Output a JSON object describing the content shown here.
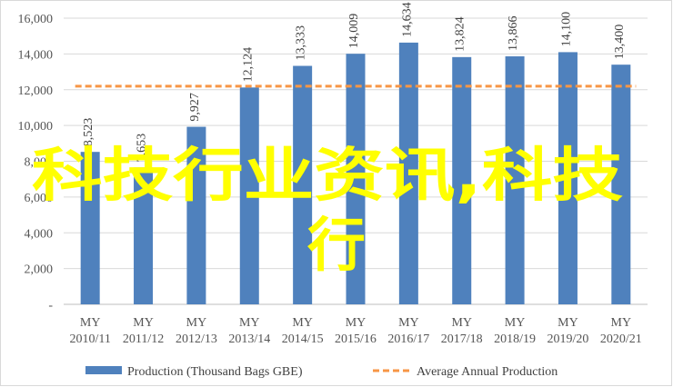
{
  "chart_data": {
    "type": "bar",
    "categories": [
      [
        "MY",
        "2010/11"
      ],
      [
        "MY",
        "2011/12"
      ],
      [
        "MY",
        "2012/13"
      ],
      [
        "MY",
        "2013/14"
      ],
      [
        "MY",
        "2014/15"
      ],
      [
        "MY",
        "2015/16"
      ],
      [
        "MY",
        "2016/17"
      ],
      [
        "MY",
        "2017/18"
      ],
      [
        "MY",
        "2018/19"
      ],
      [
        "MY",
        "2019/20"
      ],
      [
        "MY",
        "2020/21"
      ]
    ],
    "series": [
      {
        "name": "Production (Thousand Bags GBE)",
        "type": "bar",
        "color": "#4f81bd",
        "values": [
          8523,
          7653,
          9927,
          12124,
          13333,
          14009,
          14634,
          13824,
          13866,
          14100,
          13400
        ],
        "labels": [
          "8,523",
          "7,653",
          "9,927",
          "12,124",
          "13,333",
          "14,009",
          "14,634",
          "13,824",
          "13,866",
          "14,100",
          "13,400"
        ]
      },
      {
        "name": "Average Annual Production",
        "type": "line",
        "style": "dashed",
        "color": "#f79646",
        "value": 12200
      }
    ],
    "yticks": [
      "-",
      "2,000",
      "4,000",
      "6,000",
      "8,000",
      "10,000",
      "12,000",
      "14,000",
      "16,000"
    ],
    "ylim": [
      0,
      16000
    ],
    "grid": true,
    "legend_position": "bottom"
  },
  "overlay": {
    "line1": "科技行业资讯,科技",
    "line2": "行",
    "color": "#ffff00"
  }
}
